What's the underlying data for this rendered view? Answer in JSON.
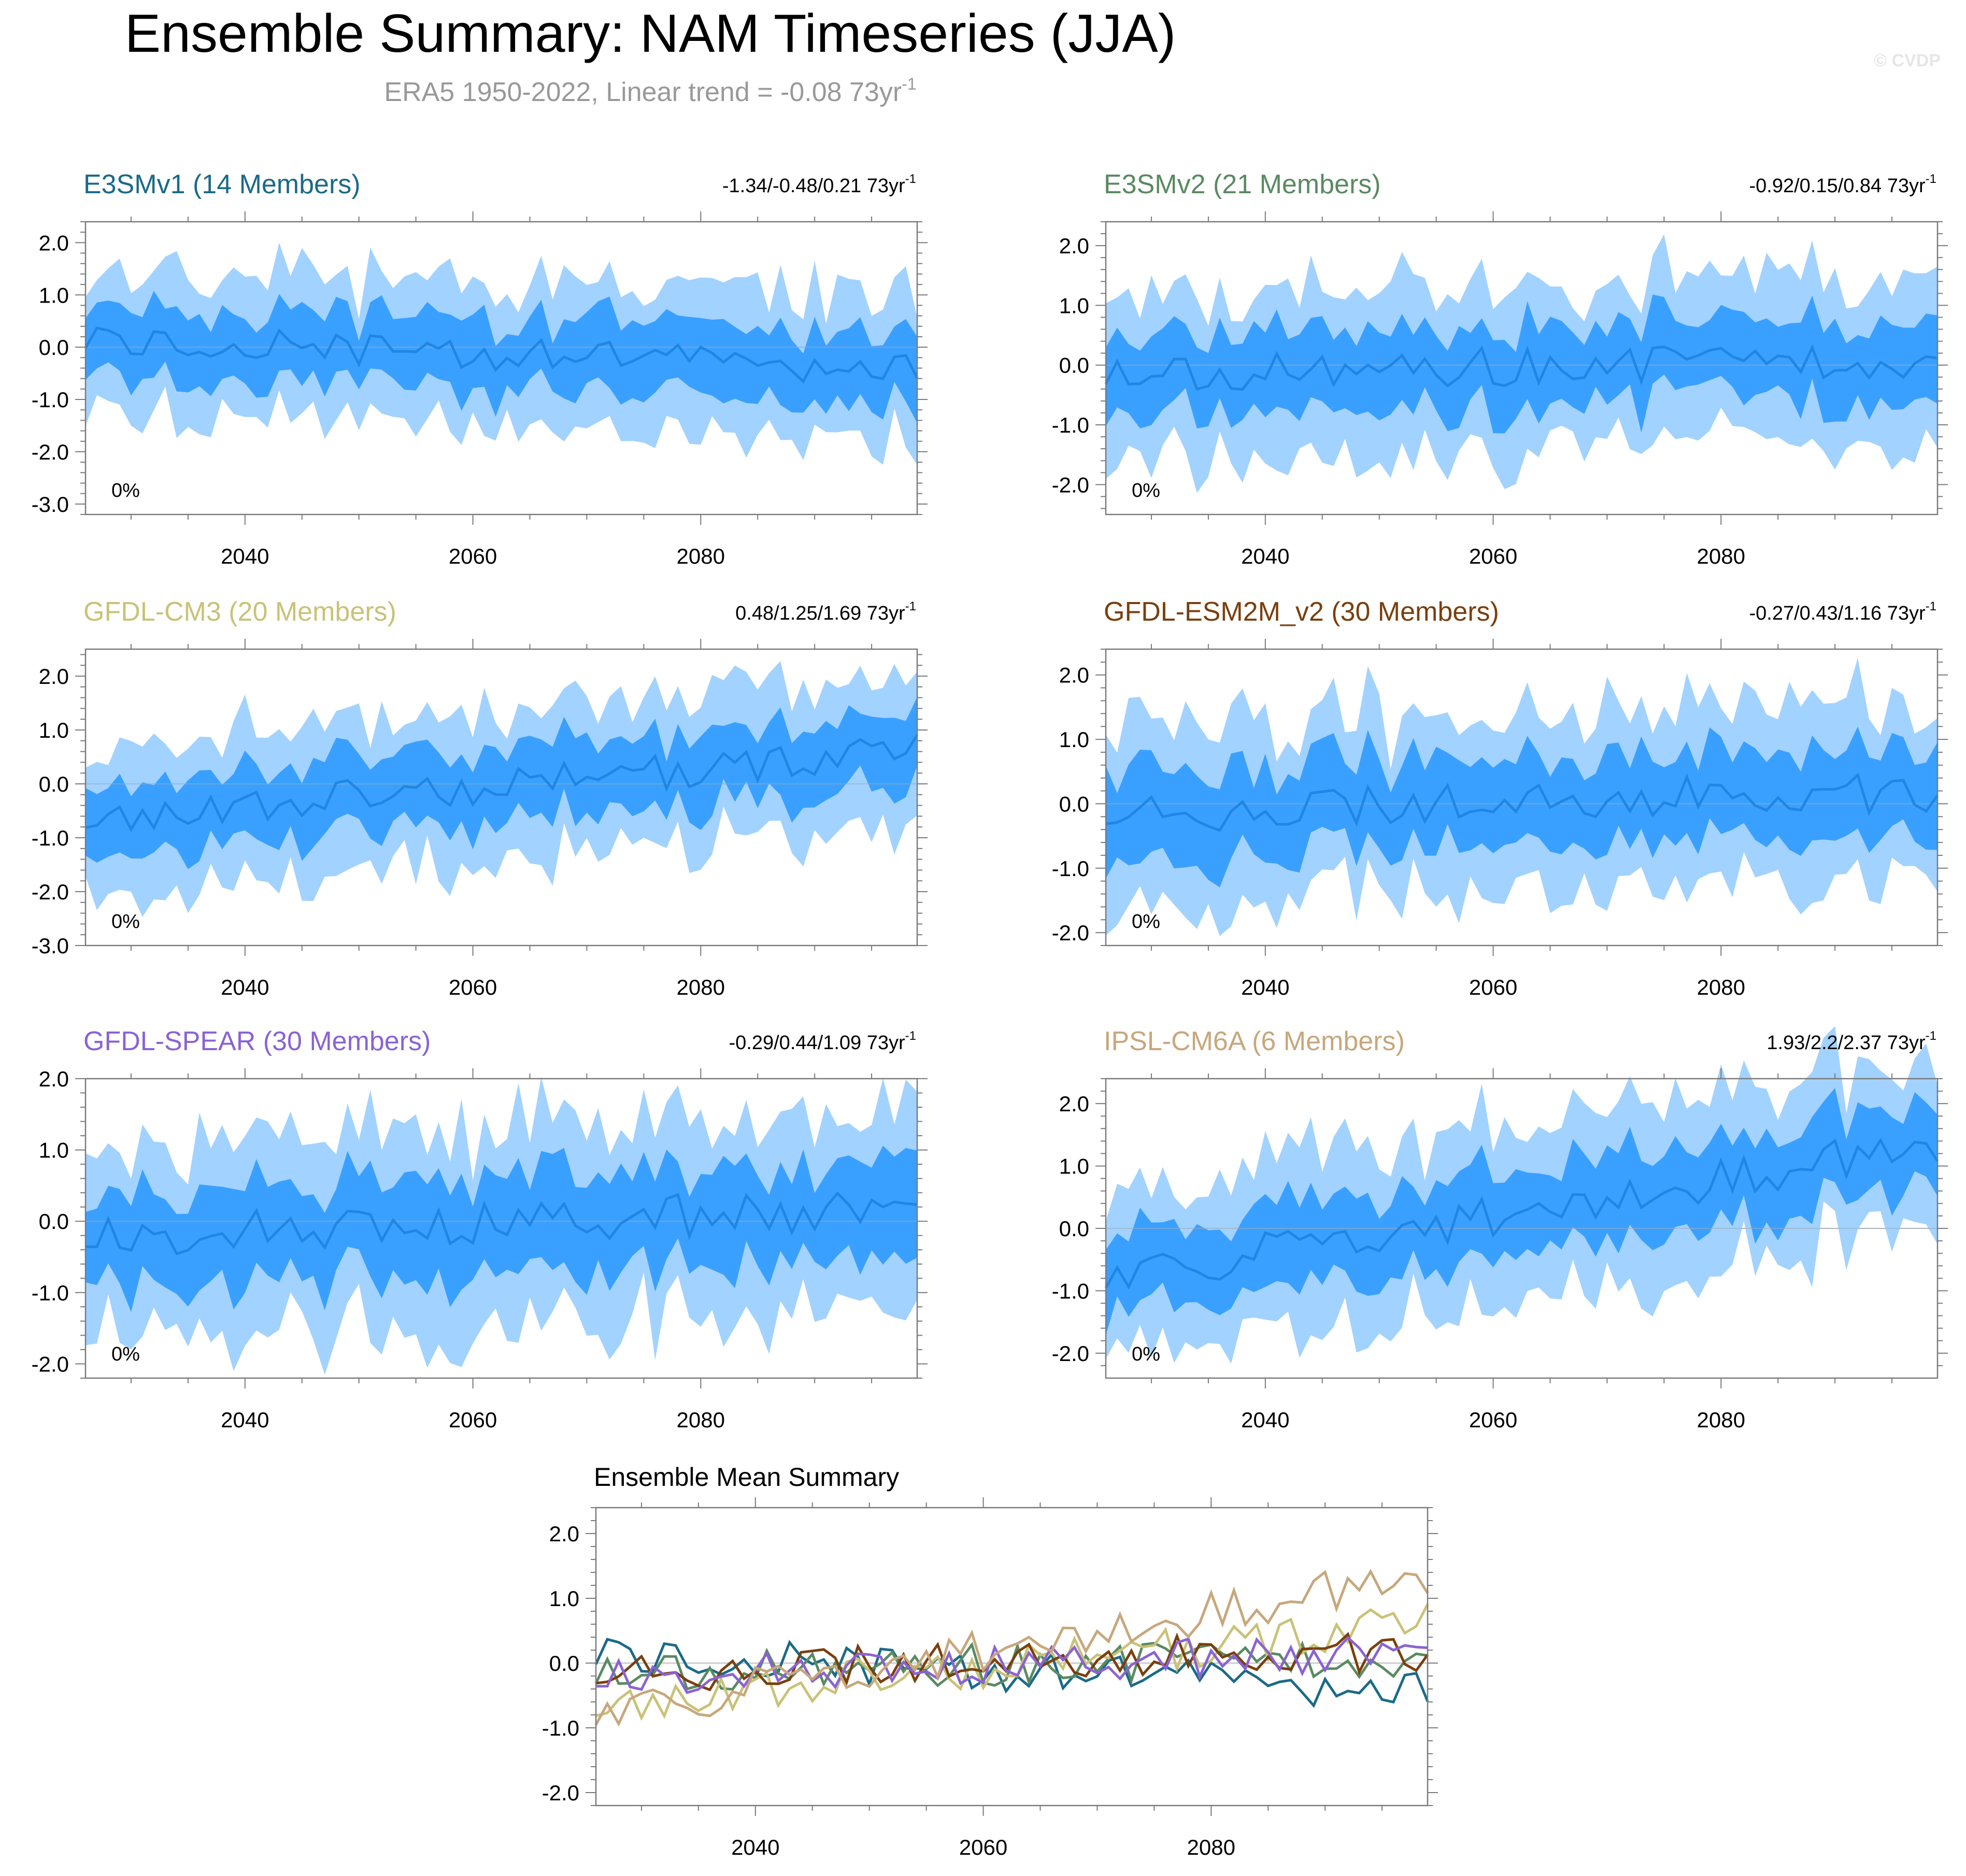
{
  "page": {
    "title": "Ensemble Summary: NAM Timeseries (JJA)",
    "subtitle_main": "ERA5 1950-2022, Linear trend = -0.08 73yr",
    "subtitle_exp": "-1",
    "watermark": "© CVDP",
    "band_dark_color": "#3aa0ff",
    "band_light_color": "#a2d2ff",
    "mean_line_color": "#1f86e6"
  },
  "chart_data": [
    {
      "type": "area",
      "panel": "E3SMv1",
      "title": "E3SMv1 (14 Members)",
      "title_color": "#1b6a88",
      "trend_text": "-1.34/-0.48/0.21 73yr",
      "trend_exp": "-1",
      "pct_label": "0%",
      "seed": 11,
      "start_mean": 0.15,
      "end_mean": -0.45,
      "ylim": [
        -3.2,
        2.4
      ],
      "yticks": [
        "2.0",
        "1.0",
        "0.0",
        "-1.0",
        "-2.0",
        "-3.0"
      ],
      "xlim": [
        2026,
        2099
      ],
      "xticks": [
        "2040",
        "2060",
        "2080"
      ]
    },
    {
      "type": "area",
      "panel": "E3SMv2",
      "title": "E3SMv2 (21 Members)",
      "title_color": "#5a8a62",
      "trend_text": "-0.92/0.15/0.84 73yr",
      "trend_exp": "-1",
      "pct_label": "0%",
      "seed": 23,
      "start_mean": -0.15,
      "end_mean": 0.1,
      "ylim": [
        -2.5,
        2.4
      ],
      "yticks": [
        "2.0",
        "1.0",
        "0.0",
        "-1.0",
        "-2.0"
      ],
      "xlim": [
        2026,
        2099
      ],
      "xticks": [
        "2040",
        "2060",
        "2080"
      ]
    },
    {
      "type": "area",
      "panel": "GFDL-CM3",
      "title": "GFDL-CM3 (20 Members)",
      "title_color": "#c9c278",
      "trend_text": "0.48/1.25/1.69 73yr",
      "trend_exp": "-1",
      "pct_label": "0%",
      "seed": 37,
      "start_mean": -0.65,
      "end_mean": 0.6,
      "ylim": [
        -3.0,
        2.5
      ],
      "yticks": [
        "2.0",
        "1.0",
        "0.0",
        "-1.0",
        "-2.0",
        "-3.0"
      ],
      "xlim": [
        2026,
        2099
      ],
      "xticks": [
        "2040",
        "2060",
        "2080"
      ]
    },
    {
      "type": "area",
      "panel": "GFDL-ESM2M_v2",
      "title": "GFDL-ESM2M_v2 (30 Members)",
      "title_color": "#7a3f0e",
      "trend_text": "-0.27/0.43/1.16 73yr",
      "trend_exp": "-1",
      "pct_label": "0%",
      "seed": 41,
      "start_mean": -0.15,
      "end_mean": 0.2,
      "ylim": [
        -2.2,
        2.4
      ],
      "yticks": [
        "2.0",
        "1.0",
        "0.0",
        "-1.0",
        "-2.0"
      ],
      "xlim": [
        2026,
        2099
      ],
      "xticks": [
        "2040",
        "2060",
        "2080"
      ]
    },
    {
      "type": "area",
      "panel": "GFDL-SPEAR",
      "title": "GFDL-SPEAR (30 Members)",
      "title_color": "#8a63d2",
      "trend_text": "-0.29/0.44/1.09 73yr",
      "trend_exp": "-1",
      "pct_label": "0%",
      "seed": 53,
      "start_mean": -0.2,
      "end_mean": 0.15,
      "ylim": [
        -2.2,
        2.0
      ],
      "yticks": [
        "2.0",
        "1.0",
        "0.0",
        "-1.0",
        "-2.0"
      ],
      "xlim": [
        2026,
        2099
      ],
      "xticks": [
        "2040",
        "2060",
        "2080"
      ]
    },
    {
      "type": "area",
      "panel": "IPSL-CM6A",
      "title": "IPSL-CM6A (6 Members)",
      "title_color": "#c7a77c",
      "trend_text": "1.93/2.2/2.37 73yr",
      "trend_exp": "-1",
      "pct_label": "0%",
      "seed": 67,
      "start_mean": -0.8,
      "end_mean": 1.35,
      "ylim": [
        -2.4,
        2.4
      ],
      "yticks": [
        "2.0",
        "1.0",
        "0.0",
        "-1.0",
        "-2.0"
      ],
      "xlim": [
        2026,
        2099
      ],
      "xticks": [
        "2040",
        "2060",
        "2080"
      ]
    },
    {
      "type": "line",
      "panel": "Ensemble Mean",
      "title": "Ensemble Mean Summary",
      "ylim": [
        -2.2,
        2.4
      ],
      "yticks": [
        "2.0",
        "1.0",
        "0.0",
        "-1.0",
        "-2.0"
      ],
      "xlim": [
        2026,
        2099
      ],
      "xticks": [
        "2040",
        "2060",
        "2080"
      ],
      "series": [
        {
          "name": "E3SMv1",
          "color": "#1b6a88",
          "seed": 11,
          "start_mean": 0.15,
          "end_mean": -0.45
        },
        {
          "name": "E3SMv2",
          "color": "#5a8a62",
          "seed": 23,
          "start_mean": -0.15,
          "end_mean": 0.1
        },
        {
          "name": "GFDL-CM3",
          "color": "#c9c278",
          "seed": 37,
          "start_mean": -0.65,
          "end_mean": 0.6
        },
        {
          "name": "GFDL-ESM2M_v2",
          "color": "#7a3f0e",
          "seed": 41,
          "start_mean": -0.15,
          "end_mean": 0.2
        },
        {
          "name": "GFDL-SPEAR",
          "color": "#8a63d2",
          "seed": 53,
          "start_mean": -0.2,
          "end_mean": 0.15
        },
        {
          "name": "IPSL-CM6A",
          "color": "#c7a77c",
          "seed": 67,
          "start_mean": -0.8,
          "end_mean": 1.35
        }
      ]
    }
  ]
}
